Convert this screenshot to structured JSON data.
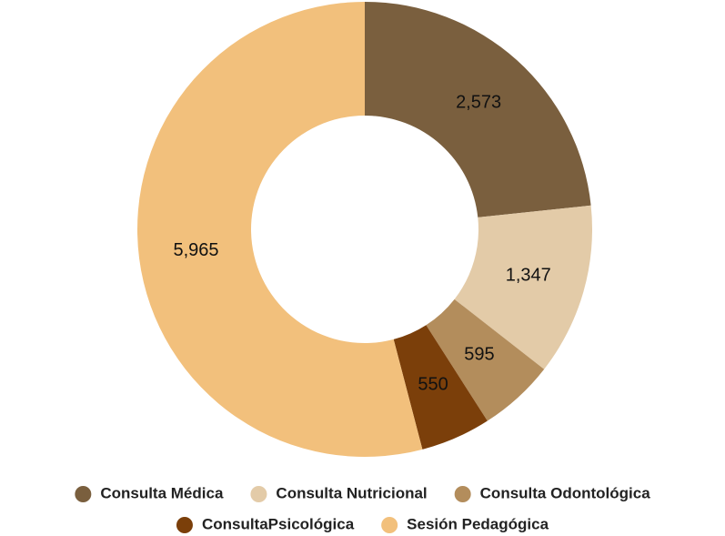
{
  "chart_data": {
    "type": "donut",
    "categories": [
      "Consulta Médica",
      "Consulta Nutricional",
      "Consulta Odontológica",
      "ConsultaPsicológica",
      "Sesión Pedagógica"
    ],
    "values": [
      2573,
      1347,
      595,
      550,
      5965
    ],
    "value_labels": [
      "2,573",
      "1,347",
      "595",
      "550",
      "5,965"
    ],
    "colors": [
      "#7a5f3e",
      "#e3cba8",
      "#b38d5c",
      "#7b3f0a",
      "#f2c07c"
    ],
    "legend": "bottom"
  }
}
